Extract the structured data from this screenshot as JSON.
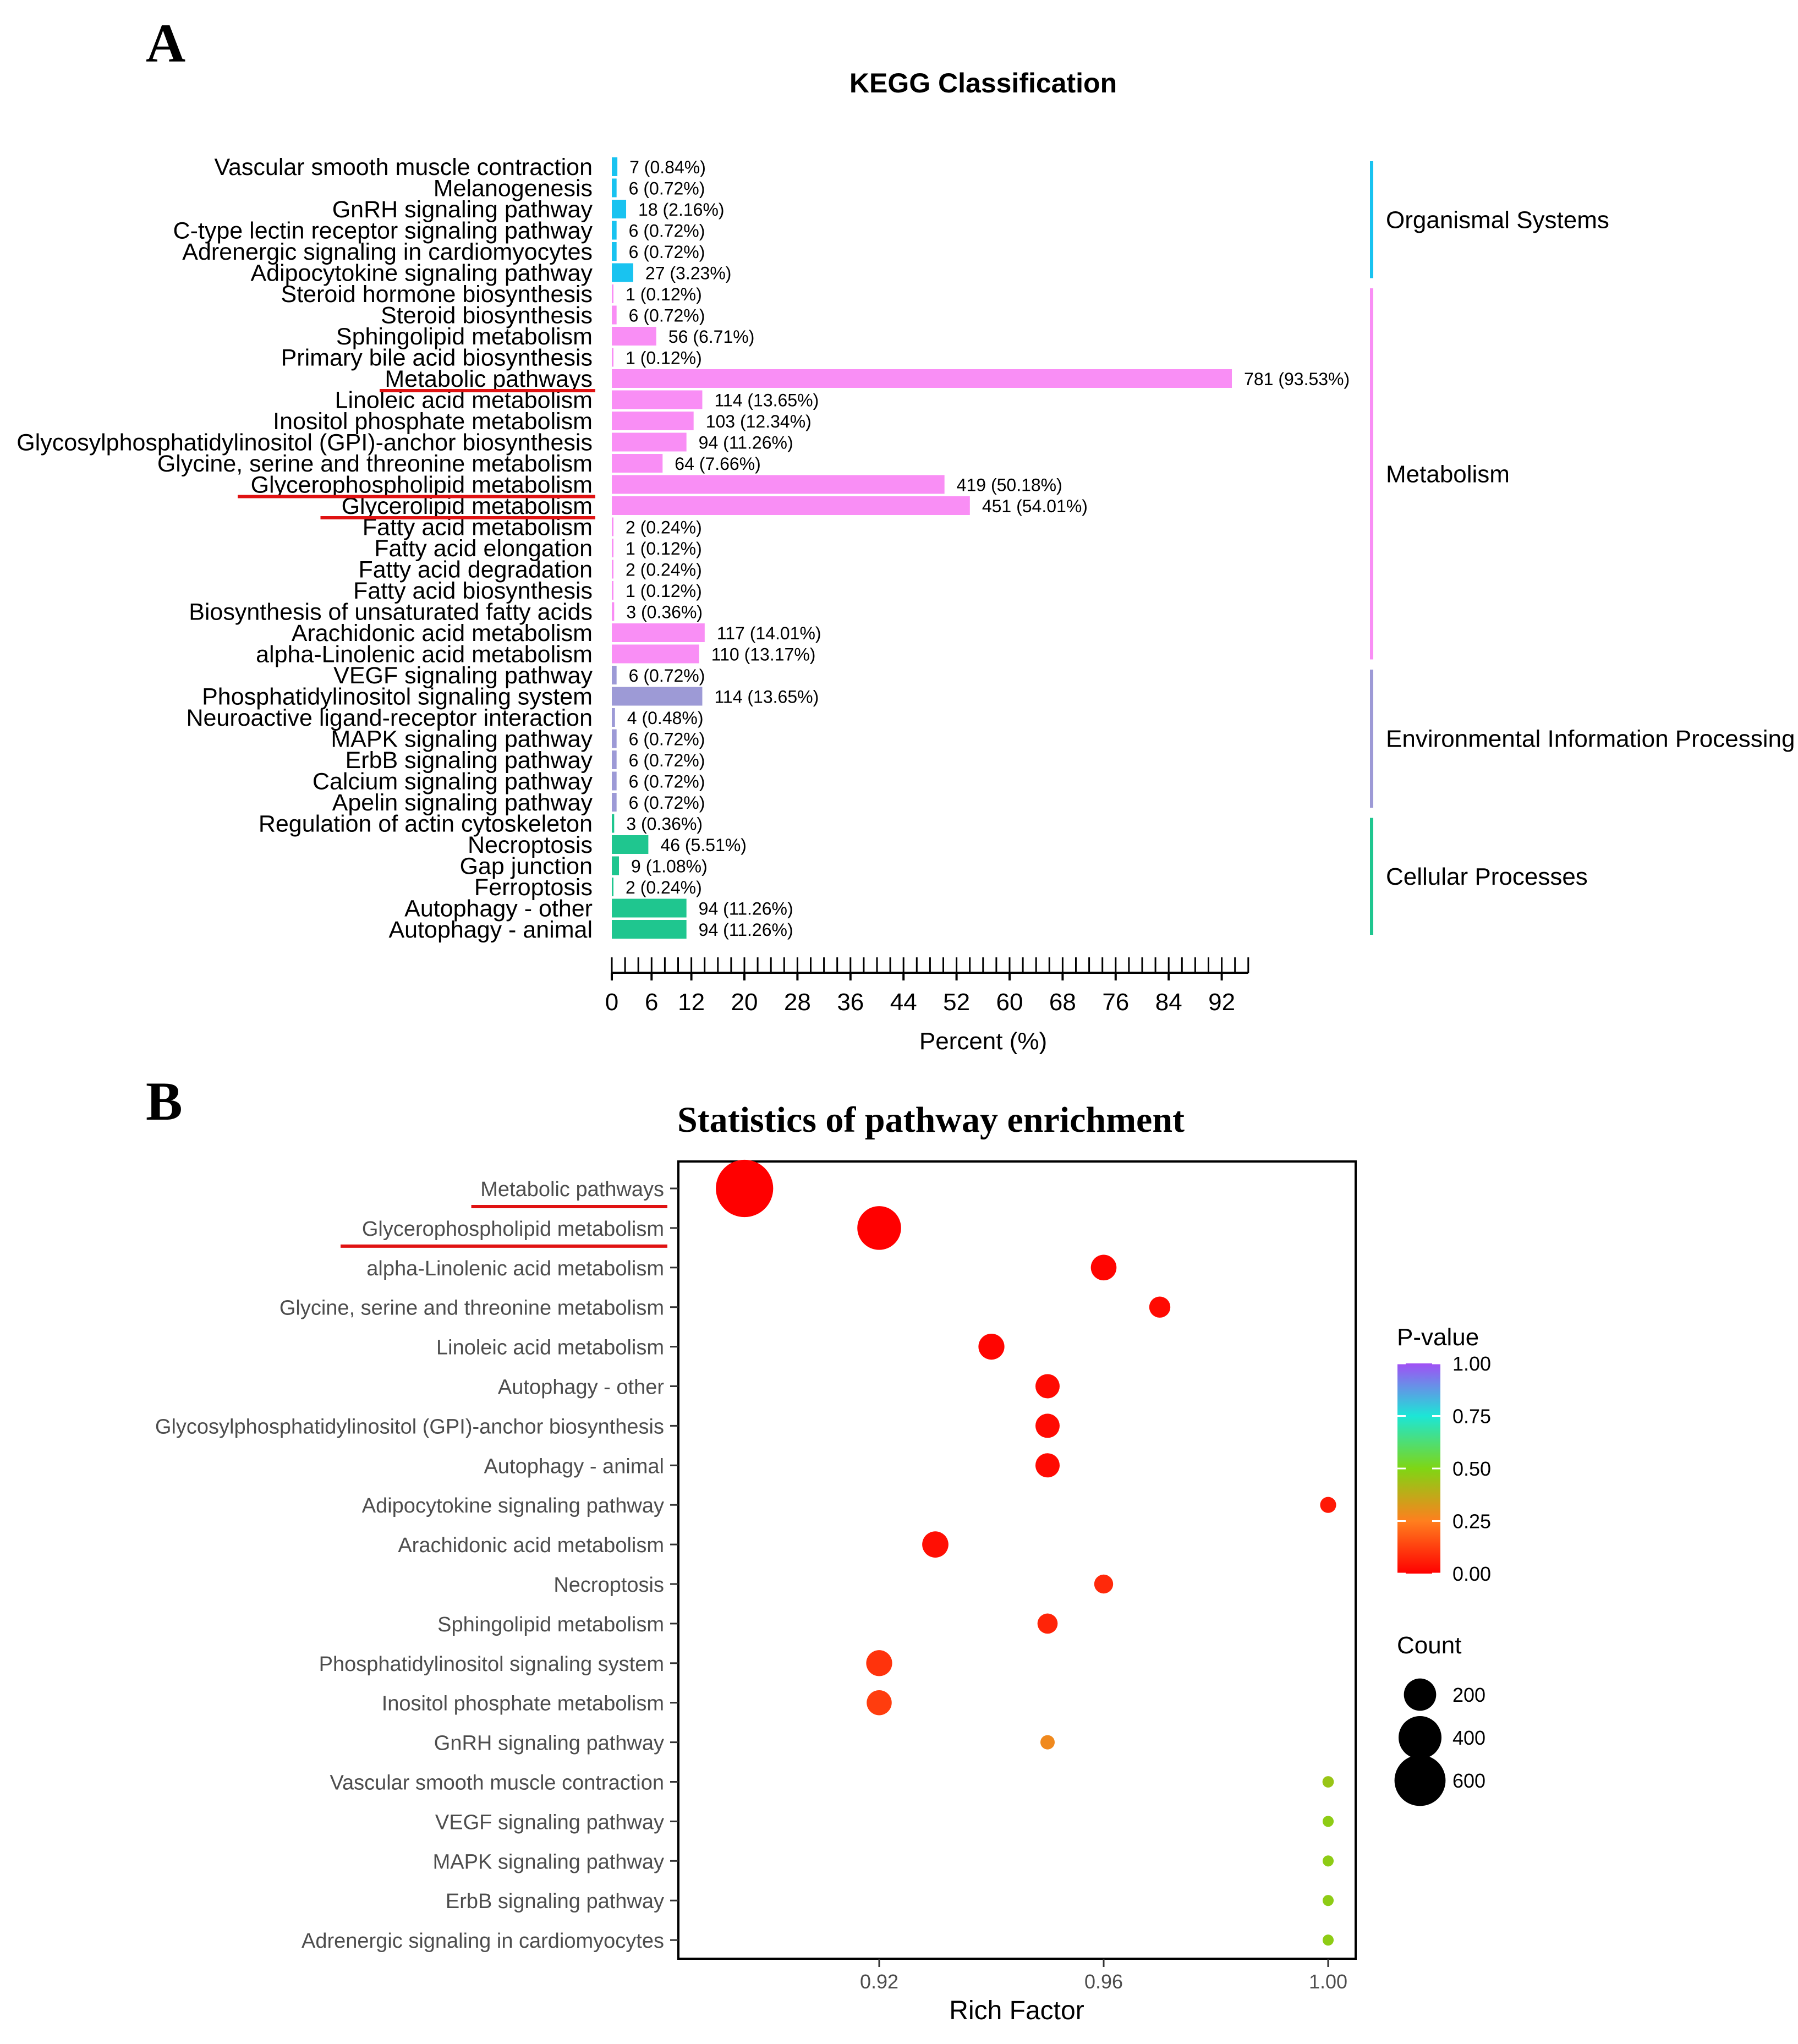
{
  "panel_labels": {
    "a": "A",
    "b": "B"
  },
  "colors": {
    "organismal": "#19c3f0",
    "metabolism": "#f98ef5",
    "environmental": "#9d9ad6",
    "cellular": "#1fc68f",
    "underline": "#e01212",
    "axis": "#000000"
  },
  "chart_data": [
    {
      "type": "bar",
      "orientation": "horizontal",
      "title": "KEGG Classification",
      "xlabel": "Percent (%)",
      "xlim": [
        0,
        96
      ],
      "xticks": [
        0,
        6,
        12,
        20,
        28,
        36,
        44,
        52,
        60,
        68,
        76,
        84,
        92
      ],
      "categories": [
        {
          "name": "Vascular smooth muscle contraction",
          "count": 7,
          "label": "7 (0.84%)",
          "percent": 0.84,
          "group": 0
        },
        {
          "name": "Melanogenesis",
          "count": 6,
          "label": "6 (0.72%)",
          "percent": 0.72,
          "group": 0
        },
        {
          "name": "GnRH signaling pathway",
          "count": 18,
          "label": "18 (2.16%)",
          "percent": 2.16,
          "group": 0
        },
        {
          "name": "C-type lectin receptor signaling pathway",
          "count": 6,
          "label": "6 (0.72%)",
          "percent": 0.72,
          "group": 0
        },
        {
          "name": "Adrenergic signaling in cardiomyocytes",
          "count": 6,
          "label": "6 (0.72%)",
          "percent": 0.72,
          "group": 0
        },
        {
          "name": "Adipocytokine signaling pathway",
          "count": 27,
          "label": "27 (3.23%)",
          "percent": 3.23,
          "group": 0
        },
        {
          "name": "Steroid hormone biosynthesis",
          "count": 1,
          "label": "1 (0.12%)",
          "percent": 0.12,
          "group": 1
        },
        {
          "name": "Steroid biosynthesis",
          "count": 6,
          "label": "6 (0.72%)",
          "percent": 0.72,
          "group": 1
        },
        {
          "name": "Sphingolipid metabolism",
          "count": 56,
          "label": "56 (6.71%)",
          "percent": 6.71,
          "group": 1
        },
        {
          "name": "Primary bile acid biosynthesis",
          "count": 1,
          "label": "1 (0.12%)",
          "percent": 0.12,
          "group": 1
        },
        {
          "name": "Metabolic pathways",
          "count": 781,
          "label": "781 (93.53%)",
          "percent": 93.53,
          "group": 1,
          "underline": true
        },
        {
          "name": "Linoleic acid metabolism",
          "count": 114,
          "label": "114 (13.65%)",
          "percent": 13.65,
          "group": 1
        },
        {
          "name": "Inositol phosphate metabolism",
          "count": 103,
          "label": "103 (12.34%)",
          "percent": 12.34,
          "group": 1
        },
        {
          "name": "Glycosylphosphatidylinositol (GPI)-anchor biosynthesis",
          "count": 94,
          "label": "94 (11.26%)",
          "percent": 11.26,
          "group": 1
        },
        {
          "name": "Glycine, serine and threonine metabolism",
          "count": 64,
          "label": "64 (7.66%)",
          "percent": 7.66,
          "group": 1
        },
        {
          "name": "Glycerophospholipid metabolism",
          "count": 419,
          "label": "419 (50.18%)",
          "percent": 50.18,
          "group": 1,
          "underline": true
        },
        {
          "name": "Glycerolipid metabolism",
          "count": 451,
          "label": "451 (54.01%)",
          "percent": 54.01,
          "group": 1,
          "underline": true
        },
        {
          "name": "Fatty acid metabolism",
          "count": 2,
          "label": "2 (0.24%)",
          "percent": 0.24,
          "group": 1
        },
        {
          "name": "Fatty acid elongation",
          "count": 1,
          "label": "1 (0.12%)",
          "percent": 0.12,
          "group": 1
        },
        {
          "name": "Fatty acid degradation",
          "count": 2,
          "label": "2 (0.24%)",
          "percent": 0.24,
          "group": 1
        },
        {
          "name": "Fatty acid biosynthesis",
          "count": 1,
          "label": "1 (0.12%)",
          "percent": 0.12,
          "group": 1
        },
        {
          "name": "Biosynthesis of unsaturated fatty acids",
          "count": 3,
          "label": "3 (0.36%)",
          "percent": 0.36,
          "group": 1
        },
        {
          "name": "Arachidonic acid metabolism",
          "count": 117,
          "label": "117 (14.01%)",
          "percent": 14.01,
          "group": 1
        },
        {
          "name": "alpha-Linolenic acid metabolism",
          "count": 110,
          "label": "110 (13.17%)",
          "percent": 13.17,
          "group": 1
        },
        {
          "name": "VEGF signaling pathway",
          "count": 6,
          "label": "6 (0.72%)",
          "percent": 0.72,
          "group": 2
        },
        {
          "name": "Phosphatidylinositol signaling system",
          "count": 114,
          "label": "114 (13.65%)",
          "percent": 13.65,
          "group": 2
        },
        {
          "name": "Neuroactive ligand-receptor interaction",
          "count": 4,
          "label": "4 (0.48%)",
          "percent": 0.48,
          "group": 2
        },
        {
          "name": "MAPK signaling pathway",
          "count": 6,
          "label": "6 (0.72%)",
          "percent": 0.72,
          "group": 2
        },
        {
          "name": "ErbB signaling pathway",
          "count": 6,
          "label": "6 (0.72%)",
          "percent": 0.72,
          "group": 2
        },
        {
          "name": "Calcium signaling pathway",
          "count": 6,
          "label": "6 (0.72%)",
          "percent": 0.72,
          "group": 2
        },
        {
          "name": "Apelin signaling pathway",
          "count": 6,
          "label": "6 (0.72%)",
          "percent": 0.72,
          "group": 2
        },
        {
          "name": "Regulation of actin cytoskeleton",
          "count": 3,
          "label": "3 (0.36%)",
          "percent": 0.36,
          "group": 3
        },
        {
          "name": "Necroptosis",
          "count": 46,
          "label": "46 (5.51%)",
          "percent": 5.51,
          "group": 3
        },
        {
          "name": "Gap junction",
          "count": 9,
          "label": "9 (1.08%)",
          "percent": 1.08,
          "group": 3
        },
        {
          "name": "Ferroptosis",
          "count": 2,
          "label": "2 (0.24%)",
          "percent": 0.24,
          "group": 3
        },
        {
          "name": "Autophagy - other",
          "count": 94,
          "label": "94 (11.26%)",
          "percent": 11.26,
          "group": 3
        },
        {
          "name": "Autophagy - animal",
          "count": 94,
          "label": "94 (11.26%)",
          "percent": 11.26,
          "group": 3
        }
      ],
      "groups": [
        {
          "name": "Organismal Systems",
          "color": "#19c3f0"
        },
        {
          "name": "Metabolism",
          "color": "#f98ef5"
        },
        {
          "name": "Environmental Information Processing",
          "color": "#9d9ad6"
        },
        {
          "name": "Cellular Processes",
          "color": "#1fc68f"
        }
      ]
    },
    {
      "type": "scatter",
      "title": "Statistics of pathway enrichment",
      "xlabel": "Rich Factor",
      "ylabel": "",
      "xlim": [
        0.889,
        1.005
      ],
      "xticks": [
        0.92,
        0.96,
        1.0
      ],
      "xtick_labels": [
        "0.92",
        "0.96",
        "1.00"
      ],
      "points": [
        {
          "pathway": "Metabolic pathways",
          "rich_factor": 0.896,
          "count": 781,
          "pvalue": 0.0,
          "underline": true
        },
        {
          "pathway": "Glycerophospholipid metabolism",
          "rich_factor": 0.92,
          "count": 419,
          "pvalue": 0.0,
          "underline": true
        },
        {
          "pathway": "alpha-Linolenic acid metabolism",
          "rich_factor": 0.96,
          "count": 110,
          "pvalue": 0.01
        },
        {
          "pathway": "Glycine, serine and threonine metabolism",
          "rich_factor": 0.97,
          "count": 64,
          "pvalue": 0.02
        },
        {
          "pathway": "Linoleic acid metabolism",
          "rich_factor": 0.94,
          "count": 114,
          "pvalue": 0.01
        },
        {
          "pathway": "Autophagy - other",
          "rich_factor": 0.95,
          "count": 94,
          "pvalue": 0.02
        },
        {
          "pathway": "Glycosylphosphatidylinositol (GPI)-anchor biosynthesis",
          "rich_factor": 0.95,
          "count": 94,
          "pvalue": 0.02
        },
        {
          "pathway": "Autophagy - animal",
          "rich_factor": 0.95,
          "count": 94,
          "pvalue": 0.02
        },
        {
          "pathway": "Adipocytokine signaling pathway",
          "rich_factor": 1.0,
          "count": 27,
          "pvalue": 0.05
        },
        {
          "pathway": "Arachidonic acid metabolism",
          "rich_factor": 0.93,
          "count": 117,
          "pvalue": 0.03
        },
        {
          "pathway": "Necroptosis",
          "rich_factor": 0.96,
          "count": 46,
          "pvalue": 0.08
        },
        {
          "pathway": "Sphingolipid metabolism",
          "rich_factor": 0.95,
          "count": 56,
          "pvalue": 0.07
        },
        {
          "pathway": "Phosphatidylinositol signaling system",
          "rich_factor": 0.92,
          "count": 114,
          "pvalue": 0.1
        },
        {
          "pathway": "Inositol phosphate metabolism",
          "rich_factor": 0.92,
          "count": 103,
          "pvalue": 0.12
        },
        {
          "pathway": "GnRH signaling pathway",
          "rich_factor": 0.95,
          "count": 18,
          "pvalue": 0.28
        },
        {
          "pathway": "Vascular smooth muscle contraction",
          "rich_factor": 1.0,
          "count": 7,
          "pvalue": 0.45
        },
        {
          "pathway": "VEGF signaling pathway",
          "rich_factor": 1.0,
          "count": 6,
          "pvalue": 0.47
        },
        {
          "pathway": "MAPK signaling pathway",
          "rich_factor": 1.0,
          "count": 6,
          "pvalue": 0.47
        },
        {
          "pathway": "ErbB signaling pathway",
          "rich_factor": 1.0,
          "count": 6,
          "pvalue": 0.47
        },
        {
          "pathway": "Adrenergic signaling in cardiomyocytes",
          "rich_factor": 1.0,
          "count": 6,
          "pvalue": 0.47
        }
      ],
      "color_legend": {
        "title": "P-value",
        "ticks": [
          1.0,
          0.75,
          0.5,
          0.25,
          0.0
        ],
        "tick_labels": [
          "1.00",
          "0.75",
          "0.50",
          "0.25",
          "0.00"
        ],
        "stops": [
          "#ff0000",
          "#ff7f1e",
          "#7fd614",
          "#1ce6d6",
          "#a14ff5"
        ]
      },
      "size_legend": {
        "title": "Count",
        "values": [
          200,
          400,
          600
        ],
        "labels": [
          "200",
          "400",
          "600"
        ]
      }
    }
  ]
}
